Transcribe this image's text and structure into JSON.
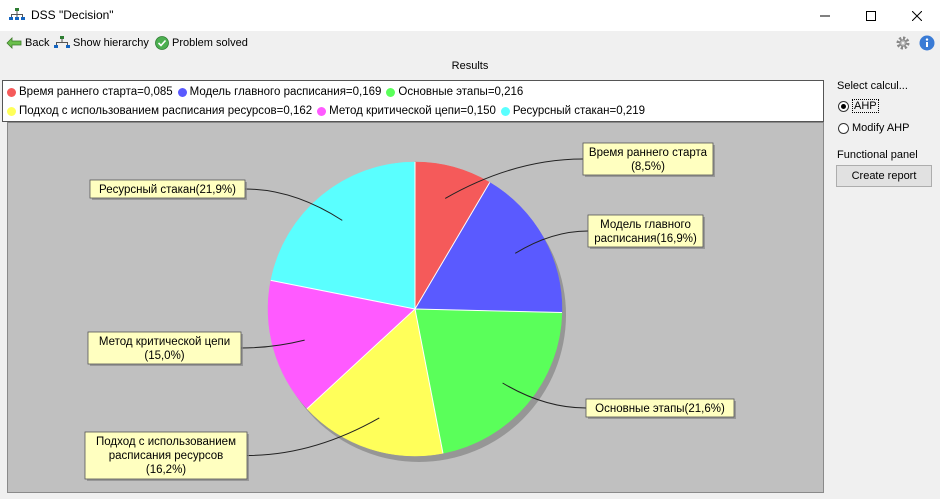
{
  "window": {
    "title": "DSS \"Decision\"",
    "minimize_icon": "minimize-icon",
    "maximize_icon": "maximize-icon",
    "close_icon": "close-icon"
  },
  "toolbar": {
    "back_label": "Back",
    "show_hierarchy_label": "Show hierarchy",
    "problem_solved_label": "Problem solved"
  },
  "results_label": "Results",
  "legend": {
    "row1": [
      {
        "text": "Время раннего старта=0,085",
        "color": "#f55a5a"
      },
      {
        "text": "Модель главного расписания=0,169",
        "color": "#5a5aff"
      },
      {
        "text": "Основные этапы=0,216",
        "color": "#5aff5a"
      }
    ],
    "row2": [
      {
        "text": "Подход с использованием расписания ресурсов=0,162",
        "color": "#ffff5a"
      },
      {
        "text": "Метод критической цепи=0,150",
        "color": "#ff5aff"
      },
      {
        "text": "Ресурсный стакан=0,219",
        "color": "#5affff"
      }
    ]
  },
  "chart_data": {
    "type": "pie",
    "slices": [
      {
        "name": "Время раннего старта",
        "value": 0.085,
        "label_lines": [
          "Время раннего старта",
          "(8,5%)"
        ],
        "color": "#f55a5a"
      },
      {
        "name": "Модель главного расписания",
        "value": 0.169,
        "label_lines": [
          "Модель главного",
          "расписания(16,9%)"
        ],
        "color": "#5a5aff"
      },
      {
        "name": "Основные этапы",
        "value": 0.216,
        "label_lines": [
          "Основные этапы(21,6%)"
        ],
        "color": "#5aff5a"
      },
      {
        "name": "Подход с использованием расписания ресурсов",
        "value": 0.162,
        "label_lines": [
          "Подход с использованием",
          "расписания ресурсов",
          "(16,2%)"
        ],
        "color": "#ffff5a"
      },
      {
        "name": "Метод критической цепи",
        "value": 0.15,
        "label_lines": [
          "Метод критической цепи",
          "(15,0%)"
        ],
        "color": "#ff5aff"
      },
      {
        "name": "Ресурсный стакан",
        "value": 0.219,
        "label_lines": [
          "Ресурсный стакан(21,9%)"
        ],
        "color": "#5affff"
      }
    ],
    "start_angle": "12 o'clock",
    "direction": "clockwise",
    "legend_placement": "top"
  },
  "side_panel": {
    "select_label": "Select calcul...",
    "options": [
      "AHP",
      "Modify AHP"
    ],
    "selected": "AHP",
    "functional_panel_label": "Functional panel",
    "create_report_label": "Create report"
  }
}
